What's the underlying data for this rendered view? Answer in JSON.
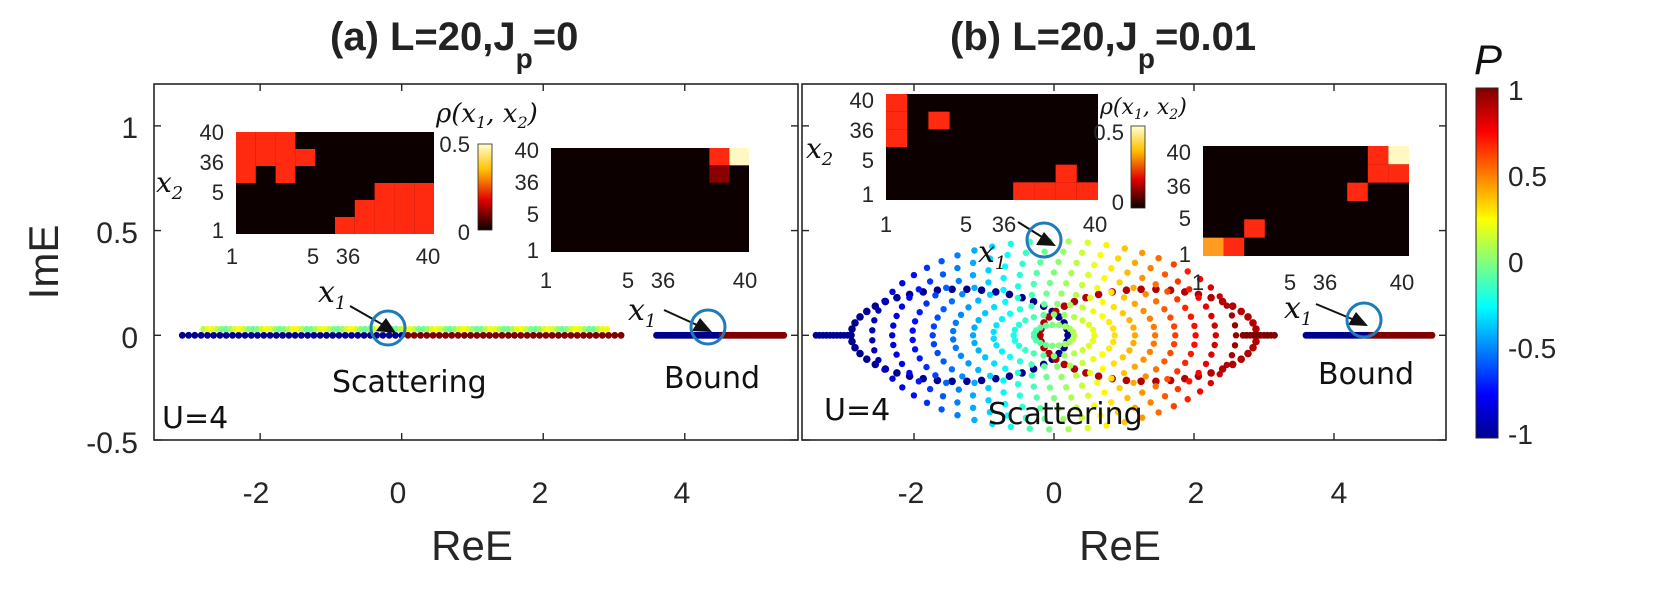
{
  "figure": {
    "panels": [
      {
        "title_main": "(a) L=20,J",
        "title_sub": "p",
        "title_end": "=0",
        "u_label": "U=4",
        "scattering_label": "Scattering",
        "bound_label": "Bound",
        "x1_label": "x",
        "x1_sub": "1"
      },
      {
        "title_main": "(b) L=20,J",
        "title_sub": "p",
        "title_end": "=0.01",
        "u_label": "U=4",
        "scattering_label": "Scattering",
        "bound_label": "Bound",
        "x1_label": "x",
        "x1_sub": "1"
      }
    ],
    "ylabel": "ImE",
    "xlabel": "ReE",
    "inset": {
      "x2_label": "x",
      "x2_sub": "2",
      "rho_label": "ρ(x",
      "rho_sub1": "1",
      "rho_mid": ", x",
      "rho_sub2": "2",
      "rho_end": ")",
      "tick_labels": [
        "1",
        "5",
        "36",
        "40"
      ],
      "cbar_ticks": [
        "0",
        "0.5"
      ]
    },
    "colorbar": {
      "label": "P",
      "ticks": [
        "1",
        "0.5",
        "0",
        "-0.5",
        "-1"
      ],
      "range": [
        -1,
        1
      ]
    }
  },
  "chart_data": [
    {
      "type": "scatter",
      "title": "(a) L=20,Jp=0",
      "xlabel": "ReE",
      "ylabel": "ImE",
      "xlim": [
        -3.5,
        5.6
      ],
      "ylim": [
        -0.5,
        1.2
      ],
      "xticks": [
        -2,
        0,
        2,
        4
      ],
      "yticks": [
        -0.5,
        0,
        0.5,
        1
      ],
      "color_variable": "P",
      "series": [
        {
          "name": "Scattering",
          "shape": "line",
          "x_range": [
            -3.1,
            3.1
          ],
          "y": 0,
          "P_range": [
            -1,
            1
          ]
        },
        {
          "name": "Scattering",
          "shape": "band",
          "x_range": [
            -2.8,
            2.9
          ],
          "y": 0.02,
          "P": 0.1
        },
        {
          "name": "Bound",
          "shape": "line",
          "x_range": [
            3.6,
            5.4
          ],
          "y": 0,
          "P_range": [
            -1,
            1
          ]
        }
      ],
      "annotations": [
        "U=4",
        "Scattering",
        "Bound"
      ]
    },
    {
      "type": "scatter",
      "title": "(b) L=20,Jp=0.01",
      "xlabel": "ReE",
      "ylabel": "ImE",
      "xlim": [
        -3.6,
        5.6
      ],
      "ylim": [
        -0.5,
        1.2
      ],
      "xticks": [
        -2,
        0,
        2,
        4
      ],
      "yticks": [],
      "color_variable": "P",
      "series": [
        {
          "name": "Scattering",
          "shape": "ellipse-loop",
          "center": [
            -1.35,
            0
          ],
          "radii": [
            1.55,
            0.22
          ],
          "P": -1
        },
        {
          "name": "Scattering",
          "shape": "ellipse-loop",
          "center": [
            1.35,
            0
          ],
          "radii": [
            1.55,
            0.22
          ],
          "P": 0.9
        },
        {
          "name": "Scattering",
          "shape": "lens-cloud",
          "center": [
            0,
            0
          ],
          "radii": [
            2.6,
            0.45
          ],
          "P_range": [
            -0.3,
            0.6
          ]
        },
        {
          "name": "Bound",
          "shape": "line",
          "x_range": [
            3.6,
            5.4
          ],
          "y": 0,
          "P_range": [
            -1,
            1
          ]
        }
      ],
      "annotations": [
        "U=4",
        "Scattering",
        "Bound"
      ]
    }
  ]
}
